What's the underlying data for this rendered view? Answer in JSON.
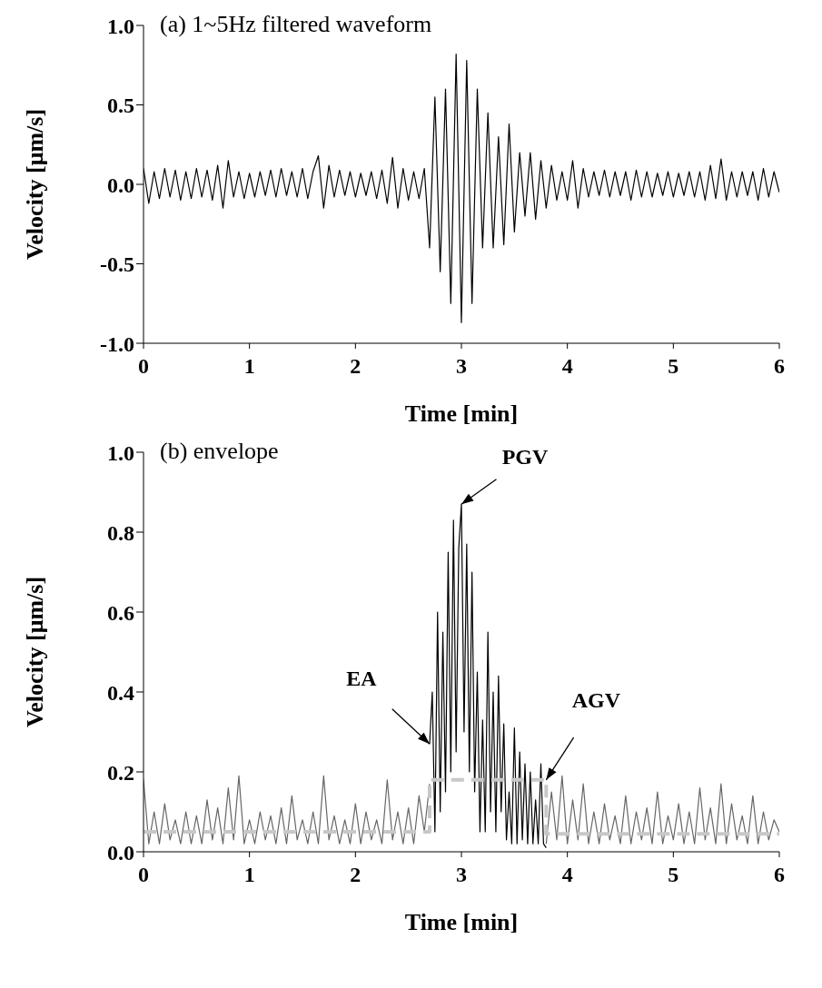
{
  "chart_data": [
    {
      "type": "line",
      "title": "(a) 1~5Hz filtered waveform",
      "xlabel": "Time [min]",
      "ylabel": "Velocity [μm/s]",
      "xlim": [
        0,
        6
      ],
      "xticks": [
        0,
        1,
        2,
        3,
        4,
        5,
        6
      ],
      "ylim": [
        -1,
        1
      ],
      "yticks": [
        {
          "value": -1,
          "label": "-1.0"
        },
        {
          "value": -0.5,
          "label": "-0.5"
        },
        {
          "value": 0,
          "label": "0.0"
        },
        {
          "value": 0.5,
          "label": "0.5"
        },
        {
          "value": 1,
          "label": "1.0"
        }
      ],
      "x": [
        0,
        0.05,
        0.1,
        0.15,
        0.2,
        0.25,
        0.3,
        0.35,
        0.4,
        0.45,
        0.5,
        0.55,
        0.6,
        0.65,
        0.7,
        0.75,
        0.8,
        0.85,
        0.9,
        0.95,
        1,
        1.05,
        1.1,
        1.15,
        1.2,
        1.25,
        1.3,
        1.35,
        1.4,
        1.45,
        1.5,
        1.55,
        1.6,
        1.65,
        1.7,
        1.75,
        1.8,
        1.85,
        1.9,
        1.95,
        2,
        2.05,
        2.1,
        2.15,
        2.2,
        2.25,
        2.3,
        2.35,
        2.4,
        2.45,
        2.5,
        2.55,
        2.6,
        2.65,
        2.7,
        2.75,
        2.8,
        2.85,
        2.9,
        2.95,
        3,
        3.05,
        3.1,
        3.15,
        3.2,
        3.25,
        3.3,
        3.35,
        3.4,
        3.45,
        3.5,
        3.55,
        3.6,
        3.65,
        3.7,
        3.75,
        3.8,
        3.85,
        3.9,
        3.95,
        4,
        4.05,
        4.1,
        4.15,
        4.2,
        4.25,
        4.3,
        4.35,
        4.4,
        4.45,
        4.5,
        4.55,
        4.6,
        4.65,
        4.7,
        4.75,
        4.8,
        4.85,
        4.9,
        4.95,
        5,
        5.05,
        5.1,
        5.15,
        5.2,
        5.25,
        5.3,
        5.35,
        5.4,
        5.45,
        5.5,
        5.55,
        5.6,
        5.65,
        5.7,
        5.75,
        5.8,
        5.85,
        5.9,
        5.95,
        6
      ],
      "series": [
        {
          "color": "#000000",
          "values": [
            0.1,
            -0.12,
            0.08,
            -0.09,
            0.1,
            -0.08,
            0.09,
            -0.1,
            0.08,
            -0.09,
            0.1,
            -0.08,
            0.09,
            -0.1,
            0.12,
            -0.15,
            0.15,
            -0.08,
            0.08,
            -0.09,
            0.07,
            -0.08,
            0.08,
            -0.07,
            0.09,
            -0.08,
            0.1,
            -0.07,
            0.08,
            -0.08,
            0.1,
            -0.09,
            0.08,
            0.18,
            -0.15,
            0.12,
            -0.08,
            0.09,
            -0.07,
            0.08,
            -0.08,
            0.07,
            -0.07,
            0.08,
            -0.09,
            0.09,
            -0.12,
            0.17,
            -0.15,
            0.1,
            -0.1,
            0.08,
            -0.09,
            0.1,
            -0.4,
            0.55,
            -0.55,
            0.6,
            -0.75,
            0.82,
            -0.87,
            0.78,
            -0.75,
            0.6,
            -0.4,
            0.45,
            -0.4,
            0.3,
            -0.38,
            0.38,
            -0.3,
            0.2,
            -0.2,
            0.2,
            -0.22,
            0.15,
            -0.15,
            0.12,
            -0.1,
            0.08,
            -0.1,
            0.15,
            -0.15,
            0.1,
            -0.08,
            0.08,
            -0.07,
            0.09,
            -0.08,
            0.08,
            -0.07,
            0.08,
            -0.1,
            0.09,
            -0.08,
            0.08,
            -0.08,
            0.07,
            -0.07,
            0.08,
            -0.08,
            0.07,
            -0.07,
            0.08,
            -0.08,
            0.08,
            -0.1,
            0.12,
            -0.09,
            0.16,
            -0.1,
            0.08,
            -0.08,
            0.08,
            -0.07,
            0.08,
            -0.1,
            0.1,
            -0.08,
            0.08,
            -0.05
          ]
        }
      ]
    },
    {
      "type": "line",
      "title": "(b) envelope",
      "xlabel": "Time [min]",
      "ylabel": "Velocity [μm/s]",
      "xlim": [
        0,
        6
      ],
      "xticks": [
        0,
        1,
        2,
        3,
        4,
        5,
        6
      ],
      "ylim": [
        0,
        1
      ],
      "yticks": [
        {
          "value": 0,
          "label": "0.0"
        },
        {
          "value": 0.2,
          "label": "0.2"
        },
        {
          "value": 0.4,
          "label": "0.4"
        },
        {
          "value": 0.6,
          "label": "0.6"
        },
        {
          "value": 0.8,
          "label": "0.8"
        },
        {
          "value": 1,
          "label": "1.0"
        }
      ],
      "annotations": [
        {
          "text": "PGV",
          "x": 3,
          "y": 0.87
        },
        {
          "text": "EA",
          "x": 2.7,
          "y": 0.27
        },
        {
          "text": "AGV",
          "x": 3.8,
          "y": 0.18
        }
      ],
      "series": [
        {
          "color": "#666666",
          "x": [
            0,
            0.05,
            0.1,
            0.15,
            0.2,
            0.25,
            0.3,
            0.35,
            0.4,
            0.45,
            0.5,
            0.55,
            0.6,
            0.65,
            0.7,
            0.75,
            0.8,
            0.85,
            0.9,
            0.95,
            1,
            1.05,
            1.1,
            1.15,
            1.2,
            1.25,
            1.3,
            1.35,
            1.4,
            1.45,
            1.5,
            1.55,
            1.6,
            1.65,
            1.7,
            1.75,
            1.8,
            1.85,
            1.9,
            1.95,
            2,
            2.05,
            2.1,
            2.15,
            2.2,
            2.25,
            2.3,
            2.35,
            2.4,
            2.45,
            2.5,
            2.55,
            2.6,
            2.65,
            2.7,
            3.25,
            3.8,
            3.85,
            3.9,
            3.95,
            4,
            4.05,
            4.1,
            4.15,
            4.2,
            4.25,
            4.3,
            4.35,
            4.4,
            4.45,
            4.5,
            4.55,
            4.6,
            4.65,
            4.7,
            4.75,
            4.8,
            4.85,
            4.9,
            4.95,
            5,
            5.05,
            5.1,
            5.15,
            5.2,
            5.25,
            5.3,
            5.35,
            5.4,
            5.45,
            5.5,
            5.55,
            5.6,
            5.65,
            5.7,
            5.75,
            5.8,
            5.85,
            5.9,
            5.95,
            6
          ],
          "values": [
            0.18,
            0.02,
            0.1,
            0.02,
            0.12,
            0.03,
            0.08,
            0.02,
            0.1,
            0.02,
            0.09,
            0.02,
            0.13,
            0.03,
            0.11,
            0.02,
            0.16,
            0.03,
            0.19,
            0.02,
            0.08,
            0.02,
            0.1,
            0.03,
            0.09,
            0.02,
            0.11,
            0.02,
            0.14,
            0.03,
            0.08,
            0.02,
            0.1,
            0.02,
            0.19,
            0.03,
            0.09,
            0.02,
            0.08,
            0.02,
            0.12,
            0.02,
            0.1,
            0.03,
            0.08,
            0.02,
            0.18,
            0.03,
            0.1,
            0.02,
            0.11,
            0.02,
            0.14,
            0.05,
            0.17,
            null,
            0.02,
            0.15,
            0.03,
            0.19,
            0.02,
            0.13,
            0.03,
            0.17,
            0.02,
            0.1,
            0.02,
            0.12,
            0.03,
            0.09,
            0.02,
            0.14,
            0.02,
            0.1,
            0.03,
            0.11,
            0.02,
            0.15,
            0.02,
            0.09,
            0.03,
            0.12,
            0.02,
            0.1,
            0.02,
            0.16,
            0.03,
            0.11,
            0.02,
            0.17,
            0.02,
            0.12,
            0.03,
            0.09,
            0.02,
            0.14,
            0.02,
            0.1,
            0.03,
            0.08,
            0.05
          ]
        },
        {
          "color": "#000000",
          "x": [
            2.7,
            2.725,
            2.75,
            2.775,
            2.8,
            2.825,
            2.85,
            2.875,
            2.9,
            2.925,
            2.95,
            2.975,
            3,
            3.025,
            3.05,
            3.075,
            3.1,
            3.125,
            3.15,
            3.175,
            3.2,
            3.225,
            3.25,
            3.275,
            3.3,
            3.325,
            3.35,
            3.375,
            3.4,
            3.425,
            3.45,
            3.475,
            3.5,
            3.525,
            3.55,
            3.575,
            3.6,
            3.625,
            3.65,
            3.675,
            3.7,
            3.725,
            3.75,
            3.775,
            3.8
          ],
          "values": [
            0.27,
            0.4,
            0.05,
            0.6,
            0.1,
            0.55,
            0.15,
            0.75,
            0.2,
            0.83,
            0.25,
            0.76,
            0.87,
            0.3,
            0.77,
            0.2,
            0.7,
            0.15,
            0.45,
            0.05,
            0.33,
            0.05,
            0.55,
            0.1,
            0.4,
            0.05,
            0.44,
            0.1,
            0.32,
            0.03,
            0.15,
            0.02,
            0.31,
            0.02,
            0.25,
            0.03,
            0.22,
            0.02,
            0.2,
            0.02,
            0.13,
            0.02,
            0.22,
            0.02,
            0.01
          ]
        },
        {
          "type": "step",
          "color": "#c8c8c8",
          "line_style": "dashed",
          "x": [
            0,
            2.7,
            3.8,
            6
          ],
          "values": [
            0.05,
            0.18,
            0.045,
            0.045
          ]
        }
      ]
    }
  ]
}
